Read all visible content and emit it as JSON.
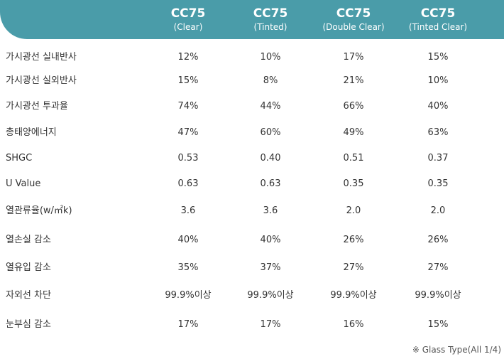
{
  "columns": [
    {
      "name": "CC75",
      "sub": "(Clear)"
    },
    {
      "name": "CC75",
      "sub": "(Tinted)"
    },
    {
      "name": "CC75",
      "sub": "(Double Clear)"
    },
    {
      "name": "CC75",
      "sub": "(Tinted Clear)"
    }
  ],
  "rows": [
    {
      "label": "가시광선 실내반사",
      "values": [
        "12%",
        "10%",
        "17%",
        "15%"
      ]
    },
    {
      "label": "가시광선 실외반사",
      "values": [
        "15%",
        "8%",
        "21%",
        "10%"
      ]
    },
    {
      "label": "가시광선 투과율",
      "values": [
        "74%",
        "44%",
        "66%",
        "40%"
      ]
    },
    {
      "label": "총태양에너지",
      "values": [
        "47%",
        "60%",
        "49%",
        "63%"
      ]
    },
    {
      "label": "SHGC",
      "values": [
        "0.53",
        "0.40",
        "0.51",
        "0.37"
      ]
    },
    {
      "label": "U Value",
      "values": [
        "0.63",
        "0.63",
        "0.35",
        "0.35"
      ]
    },
    {
      "label": "열관류율(w/㎡k)",
      "values": [
        "3.6",
        "3.6",
        "2.0",
        "2.0"
      ]
    },
    {
      "label": "열손실 감소",
      "values": [
        "40%",
        "40%",
        "26%",
        "26%"
      ]
    },
    {
      "label": "열유입 감소",
      "values": [
        "35%",
        "37%",
        "27%",
        "27%"
      ]
    },
    {
      "label": "자외선 차단",
      "values": [
        "99.9%이상",
        "99.9%이상",
        "99.9%이상",
        "99.9%이상"
      ]
    },
    {
      "label": "눈부심 감소",
      "values": [
        "17%",
        "17%",
        "16%",
        "15%"
      ]
    }
  ],
  "footnote": "※ Glass Type(All 1/4)",
  "colors": {
    "header_bg": "#4a9ca9",
    "header_text": "#ffffff",
    "body_text": "#333333"
  }
}
